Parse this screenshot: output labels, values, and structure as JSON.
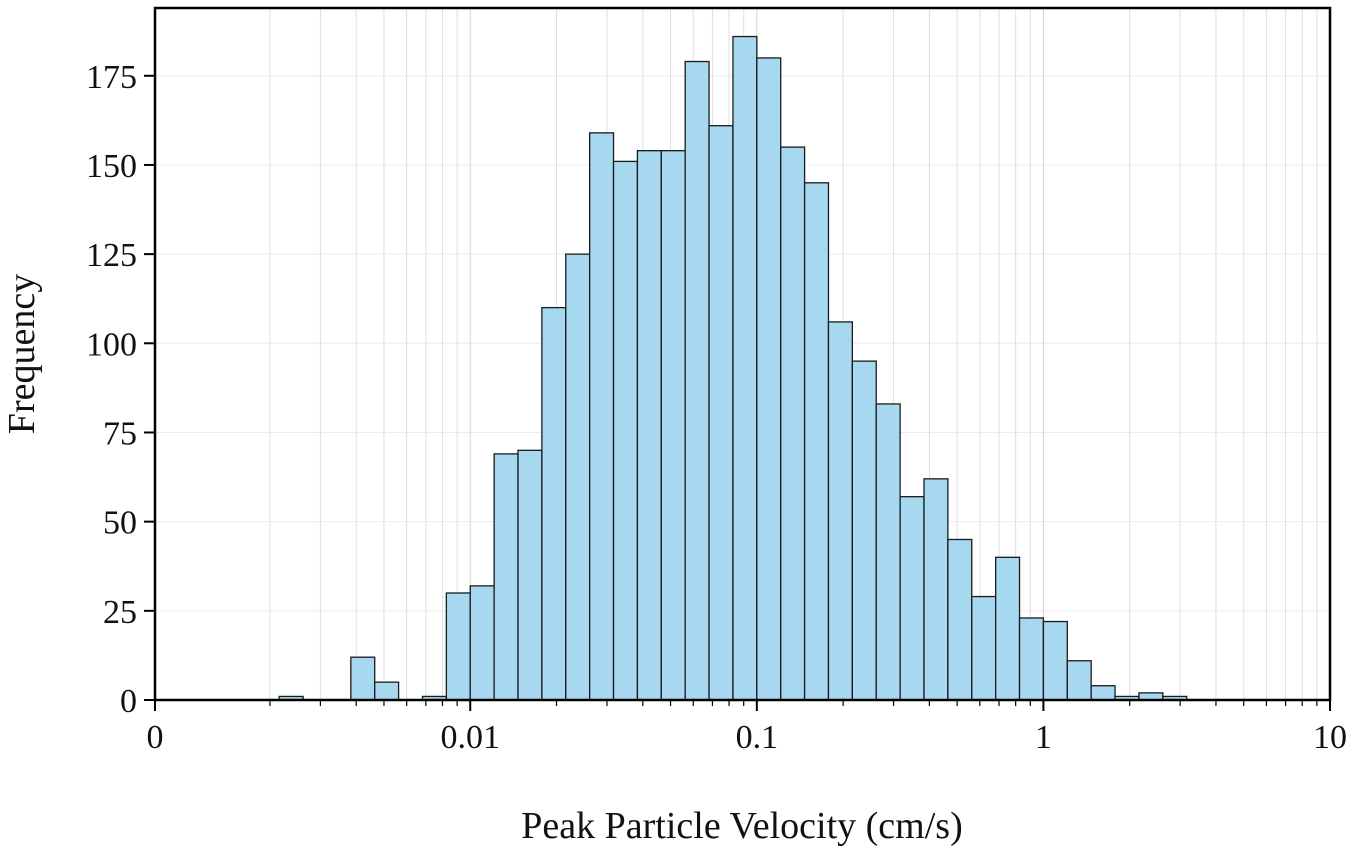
{
  "chart_data": {
    "type": "bar",
    "subtype": "histogram",
    "title": "",
    "xlabel": "Peak Particle Velocity (cm/s)",
    "ylabel": "Frequency",
    "x_scale": "log",
    "x_domain_log10": [
      -3.1,
      1.0
    ],
    "x_ticks": [
      {
        "label": "0",
        "log10": -3.1
      },
      {
        "label": "0.01",
        "log10": -2.0
      },
      {
        "label": "0.1",
        "log10": -1.0
      },
      {
        "label": "1",
        "log10": 0.0
      },
      {
        "label": "10",
        "log10": 1.0
      }
    ],
    "y_ticks": [
      {
        "label": "0",
        "value": 0
      },
      {
        "label": "25",
        "value": 25
      },
      {
        "label": "50",
        "value": 50
      },
      {
        "label": "75",
        "value": 75
      },
      {
        "label": "100",
        "value": 100
      },
      {
        "label": "125",
        "value": 125
      },
      {
        "label": "150",
        "value": 150
      },
      {
        "label": "175",
        "value": 175
      }
    ],
    "ylim": [
      0,
      194
    ],
    "bins_per_decade": 12,
    "first_bin_log10": -2.6666667,
    "frequencies": [
      1,
      0,
      0,
      12,
      5,
      0,
      1,
      30,
      32,
      69,
      70,
      110,
      125,
      159,
      151,
      154,
      154,
      179,
      161,
      186,
      180,
      155,
      145,
      106,
      95,
      83,
      57,
      62,
      45,
      29,
      40,
      23,
      22,
      11,
      4,
      1,
      2,
      1
    ],
    "grid": true,
    "legend": "none",
    "bar_fill": "#a6d8ef",
    "bar_stroke": "#1a1a1a",
    "minor_tick_decades": [
      -3,
      -2,
      -1,
      0
    ]
  }
}
